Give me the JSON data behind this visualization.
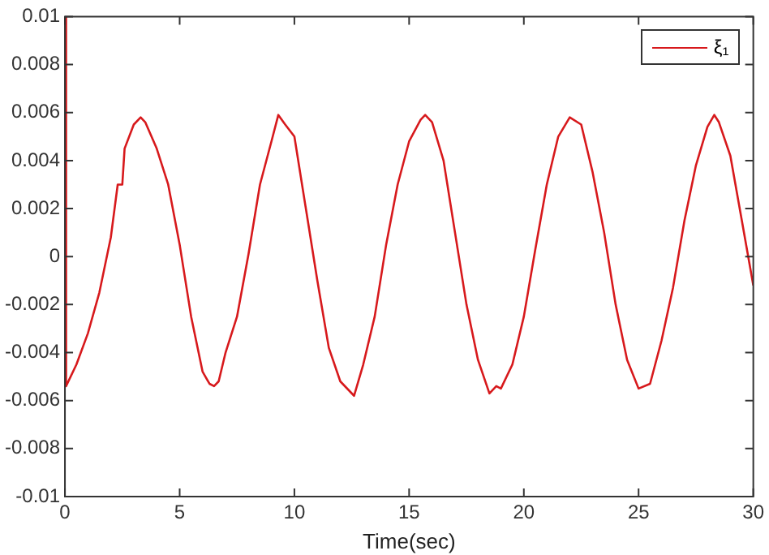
{
  "chart_data": {
    "type": "line",
    "xlabel": "Time(sec)",
    "xlim": [
      0,
      30
    ],
    "xticks": [
      0,
      5,
      10,
      15,
      20,
      25,
      30
    ],
    "ylim": [
      -0.01,
      0.01
    ],
    "yticks": [
      -0.01,
      -0.008,
      -0.006,
      -0.004,
      -0.002,
      0,
      0.002,
      0.004,
      0.006,
      0.008,
      0.01
    ],
    "grid": false,
    "legend": "top right",
    "marker": "none",
    "line_style": "solid",
    "series": [
      {
        "name": "ξ₁",
        "color": "#d7191c",
        "x": [
          0,
          0.05,
          0.5,
          1,
          1.5,
          2,
          2.3,
          2.5,
          2.6,
          3,
          3.3,
          3.5,
          4,
          4.5,
          5,
          5.5,
          6,
          6.3,
          6.5,
          6.7,
          7,
          7.5,
          8,
          8.5,
          9,
          9.3,
          9.6,
          10,
          10.5,
          11,
          11.5,
          12,
          12.6,
          13,
          13.5,
          14,
          14.5,
          15,
          15.5,
          15.7,
          16,
          16.5,
          17,
          17.5,
          18,
          18.5,
          18.8,
          19,
          19.5,
          20,
          20.5,
          21,
          21.5,
          22,
          22.5,
          23,
          23.5,
          24,
          24.5,
          25,
          25.5,
          26,
          26.5,
          27,
          27.5,
          28,
          28.3,
          28.5,
          29,
          29.5,
          30
        ],
        "values": [
          0.01,
          -0.0054,
          -0.0045,
          -0.0032,
          -0.0015,
          0.0008,
          0.003,
          0.003,
          0.0045,
          0.0055,
          0.0058,
          0.0056,
          0.0045,
          0.003,
          0.0005,
          -0.0025,
          -0.0048,
          -0.0053,
          -0.0054,
          -0.0052,
          -0.004,
          -0.0025,
          0.0001,
          0.003,
          0.0048,
          0.0059,
          0.0055,
          0.005,
          0.002,
          -0.001,
          -0.0038,
          -0.0052,
          -0.0058,
          -0.0045,
          -0.0025,
          0.0005,
          0.003,
          0.0048,
          0.0057,
          0.0059,
          0.0056,
          0.004,
          0.001,
          -0.002,
          -0.0043,
          -0.0057,
          -0.0054,
          -0.0055,
          -0.0045,
          -0.0025,
          0.0003,
          0.003,
          0.005,
          0.0058,
          0.0055,
          0.0035,
          0.001,
          -0.002,
          -0.0043,
          -0.0055,
          -0.0053,
          -0.0035,
          -0.0013,
          0.0015,
          0.0038,
          0.0054,
          0.0059,
          0.0056,
          0.0042,
          0.0015,
          -0.0012
        ]
      }
    ]
  }
}
